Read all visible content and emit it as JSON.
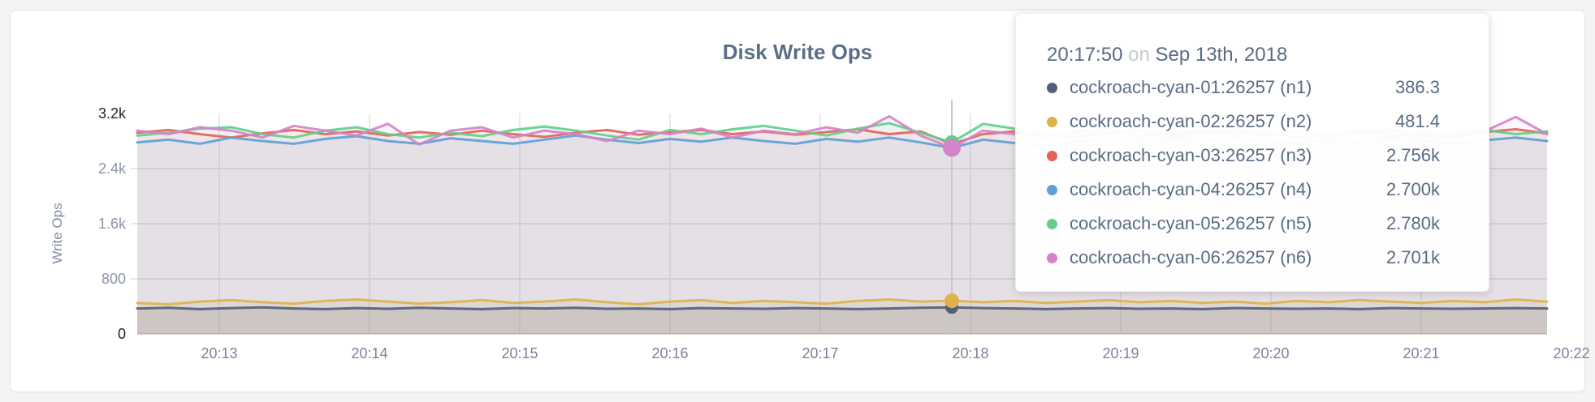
{
  "page": {
    "background": "#f4f4f5"
  },
  "tooltip": {
    "time": "20:17:50",
    "connector": "on",
    "date": "Sep 13th, 2018"
  },
  "chart_data": {
    "type": "line",
    "title": "Disk Write Ops",
    "ylabel": "Write Ops",
    "xlabel": "",
    "grid": true,
    "ylim": [
      0,
      3200
    ],
    "y_ticks": [
      {
        "label": "0",
        "value": 0
      },
      {
        "label": "800",
        "value": 800
      },
      {
        "label": "1.6k",
        "value": 1600
      },
      {
        "label": "2.4k",
        "value": 2400
      },
      {
        "label": "3.2k",
        "value": 3200
      }
    ],
    "x_ticks": [
      "20:13",
      "20:14",
      "20:15",
      "20:16",
      "20:17",
      "20:18",
      "20:19",
      "20:20",
      "20:21",
      "20:22"
    ],
    "hover_index": 26,
    "hover_time": "20:17:50",
    "series": [
      {
        "name": "cockroach-cyan-01:26257 (n1)",
        "color": "#535F79",
        "hover_value": "386.3",
        "values": [
          370,
          380,
          360,
          375,
          385,
          370,
          360,
          375,
          365,
          380,
          370,
          360,
          375,
          370,
          380,
          365,
          370,
          360,
          375,
          370,
          365,
          375,
          370,
          360,
          370,
          380,
          386.3,
          375,
          370,
          360,
          370,
          375,
          365,
          370,
          360,
          375,
          370,
          365,
          370,
          360,
          375,
          370,
          365,
          370,
          375,
          370
        ]
      },
      {
        "name": "cockroach-cyan-02:26257 (n2)",
        "color": "#DFB24E",
        "hover_value": "481.4",
        "values": [
          450,
          430,
          470,
          490,
          460,
          440,
          480,
          500,
          470,
          440,
          460,
          490,
          450,
          470,
          500,
          460,
          430,
          470,
          490,
          450,
          480,
          460,
          440,
          480,
          500,
          470,
          481.4,
          460,
          480,
          450,
          470,
          490,
          460,
          480,
          450,
          470,
          440,
          480,
          460,
          490,
          470,
          450,
          480,
          460,
          500,
          470
        ]
      },
      {
        "name": "cockroach-cyan-03:26257 (n3)",
        "color": "#E2635C",
        "hover_value": "2.756k",
        "values": [
          2920,
          2960,
          2900,
          2850,
          2910,
          2960,
          2900,
          2940,
          2880,
          2930,
          2890,
          2950,
          2900,
          2860,
          2920,
          2960,
          2890,
          2930,
          2960,
          2900,
          2940,
          2890,
          2930,
          2970,
          2900,
          2940,
          2756,
          2900,
          2940,
          2900,
          2860,
          2920,
          2950,
          2890,
          2930,
          2960,
          2900,
          2940,
          2880,
          2920,
          2960,
          2900,
          2860,
          2930,
          2970,
          2910
        ]
      },
      {
        "name": "cockroach-cyan-04:26257 (n4)",
        "color": "#5F9FD8",
        "hover_value": "2.700k",
        "values": [
          2780,
          2820,
          2760,
          2850,
          2800,
          2760,
          2830,
          2870,
          2800,
          2760,
          2840,
          2800,
          2760,
          2820,
          2880,
          2820,
          2770,
          2830,
          2790,
          2850,
          2800,
          2760,
          2830,
          2790,
          2850,
          2780,
          2700,
          2820,
          2770,
          2730,
          2800,
          2840,
          2780,
          2830,
          2790,
          2850,
          2800,
          2760,
          2820,
          2780,
          2840,
          2800,
          2760,
          2810,
          2850,
          2800
        ]
      },
      {
        "name": "cockroach-cyan-05:26257 (n5)",
        "color": "#63CE8A",
        "hover_value": "2.780k",
        "values": [
          2880,
          2920,
          2980,
          3000,
          2900,
          2850,
          2950,
          3000,
          2900,
          2850,
          2920,
          2870,
          2960,
          3010,
          2950,
          2880,
          2820,
          2960,
          2900,
          2970,
          3020,
          2950,
          2880,
          2980,
          3060,
          2920,
          2780,
          3050,
          2980,
          2850,
          2920,
          2980,
          2870,
          2920,
          2970,
          2900,
          2950,
          2850,
          2900,
          2960,
          2910,
          2850,
          2920,
          2960,
          2900,
          2940
        ]
      },
      {
        "name": "cockroach-cyan-06:26257 (n6)",
        "color": "#D583C8",
        "hover_value": "2.701k",
        "values": [
          2950,
          2900,
          3000,
          2950,
          2850,
          3020,
          2950,
          2880,
          3050,
          2750,
          2950,
          3000,
          2850,
          2950,
          2900,
          2800,
          2950,
          2900,
          2980,
          2850,
          2950,
          2900,
          3000,
          2920,
          3160,
          2880,
          2701,
          2950,
          2900,
          2850,
          2950,
          2900,
          2950,
          2850,
          2900,
          2950,
          2880,
          2930,
          2870,
          2920,
          2850,
          2960,
          2900,
          2940,
          3150,
          2900
        ]
      }
    ]
  }
}
